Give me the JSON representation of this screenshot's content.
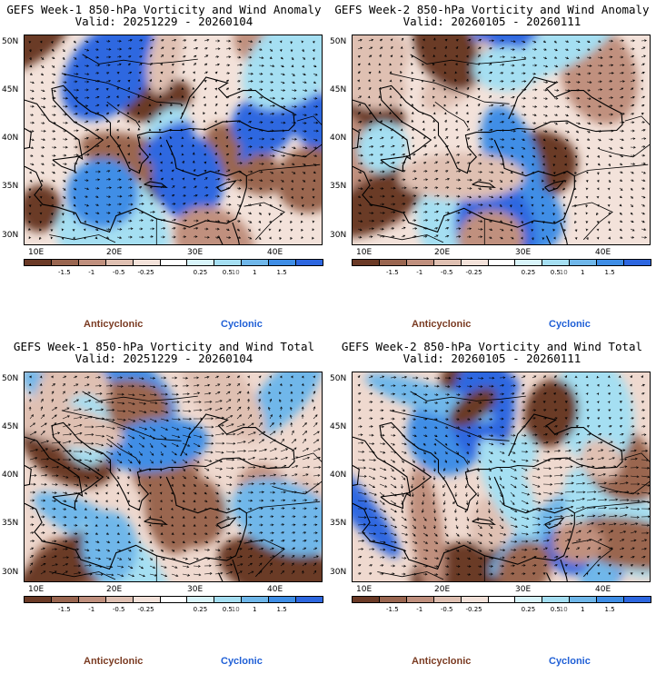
{
  "panels": [
    {
      "title": "GEFS Week-1 850-hPa Vorticity and Wind Anomaly",
      "valid": "Valid: 20251229 - 20260104",
      "kind": "anomaly",
      "seed": 11
    },
    {
      "title": "GEFS Week-2 850-hPa Vorticity and Wind Anomaly",
      "valid": "Valid: 20260105 - 20260111",
      "kind": "anomaly",
      "seed": 23
    },
    {
      "title": "GEFS Week-1 850-hPa Vorticity and Wind Total",
      "valid": "Valid: 20251229 - 20260104",
      "kind": "total",
      "seed": 37
    },
    {
      "title": "GEFS Week-2 850-hPa Vorticity and Wind Total",
      "valid": "Valid: 20260105 - 20260111",
      "kind": "total",
      "seed": 41
    }
  ],
  "lat_labels": [
    "50N",
    "45N",
    "40N",
    "35N",
    "30N"
  ],
  "lon_labels": [
    "10E",
    "20E",
    "30E",
    "40E"
  ],
  "colorbar": {
    "labels": [
      "-1.5",
      "-1",
      "-0.5",
      "-0.25",
      "0.25",
      "0.5",
      "1",
      "1.5"
    ],
    "label_inner": "10",
    "colors": [
      "#6b3a26",
      "#9a6650",
      "#c0907e",
      "#dfc0b2",
      "#f3e2da",
      "#ffffff",
      "#d8f4fa",
      "#a5dff2",
      "#6fb7ea",
      "#3f8ee6",
      "#2d67e0"
    ]
  },
  "legend": {
    "anticyclonic": "Anticyclonic",
    "cyclonic": "Cyclonic",
    "anticyclonic_color": "#7a3b22",
    "cyclonic_color": "#1f5fd6"
  }
}
